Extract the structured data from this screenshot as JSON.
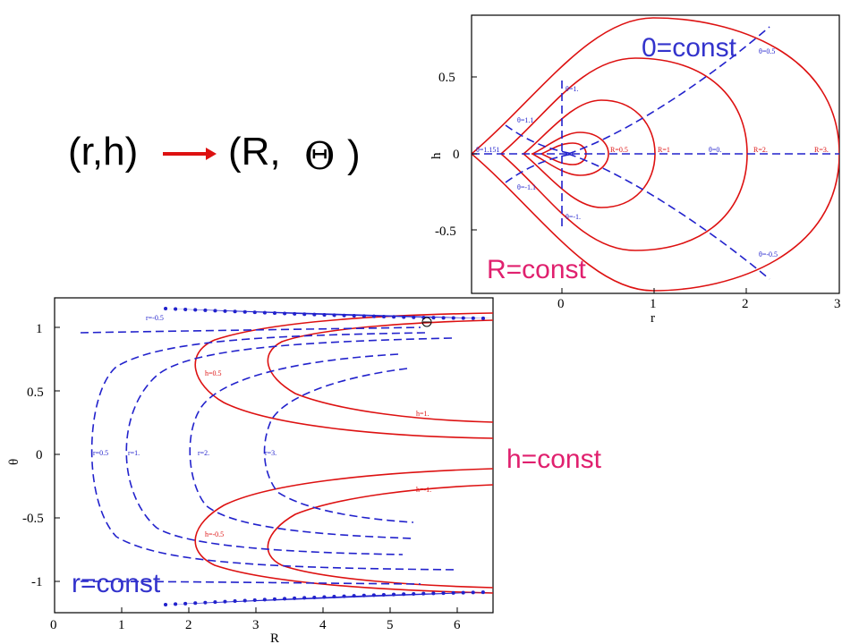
{
  "header": {
    "from": "(r,h)",
    "to_open": "(R,",
    "theta": "Θ",
    "to_close": ")"
  },
  "colors": {
    "curve": "#dd1111",
    "dash": "#2222cc",
    "pink": "#e0206e",
    "blue_text": "#3333cc"
  },
  "chart_data": [
    {
      "type": "line",
      "title": "",
      "xlabel": "r",
      "ylabel": "h",
      "xlim": [
        -1,
        3
      ],
      "ylim": [
        -0.9,
        0.9
      ],
      "xticks": [
        "0",
        "1",
        "2",
        "3"
      ],
      "yticks": [
        "0.5",
        "0",
        "-0.5"
      ],
      "R_levels": [
        0.5,
        1,
        2,
        3
      ],
      "theta_levels": [
        1.151,
        1.1,
        1.0,
        0.5,
        0,
        -0.5,
        -1.0,
        -1.1,
        -1.151
      ],
      "series_labels": {
        "R": [
          "R=0.5",
          "R=1",
          "R=2.",
          "R=3."
        ],
        "theta": [
          "θ=1.151",
          "θ=1.1",
          "θ=1.",
          "θ=0.5",
          "θ=0.",
          "θ=-0.5",
          "θ=-1.",
          "θ=-1.1"
        ]
      },
      "annotations": {
        "R_family": "R=const",
        "theta_family": "0=const"
      }
    },
    {
      "type": "line",
      "title": "",
      "xlabel": "R",
      "ylabel": "θ",
      "xlim": [
        0,
        6.5
      ],
      "ylim": [
        -1.2,
        1.2
      ],
      "xticks": [
        "0",
        "1",
        "2",
        "3",
        "4",
        "5",
        "6"
      ],
      "yticks": [
        "1",
        "0.5",
        "0",
        "-0.5",
        "-1"
      ],
      "r_levels": [
        -0.5,
        0.5,
        1,
        2,
        3
      ],
      "h_levels": [
        0.5,
        1,
        -0.5,
        -1
      ],
      "series_labels": {
        "r": [
          "r=-0.5",
          "r=0.5",
          "r=1.",
          "r=2.",
          "r=3."
        ],
        "h": [
          "h=0.5",
          "h=1.",
          "h=-0.5",
          "h=-1."
        ]
      },
      "annotations": {
        "h_family": "h=const",
        "r_family": "r=const",
        "marker": "Θ"
      }
    }
  ]
}
